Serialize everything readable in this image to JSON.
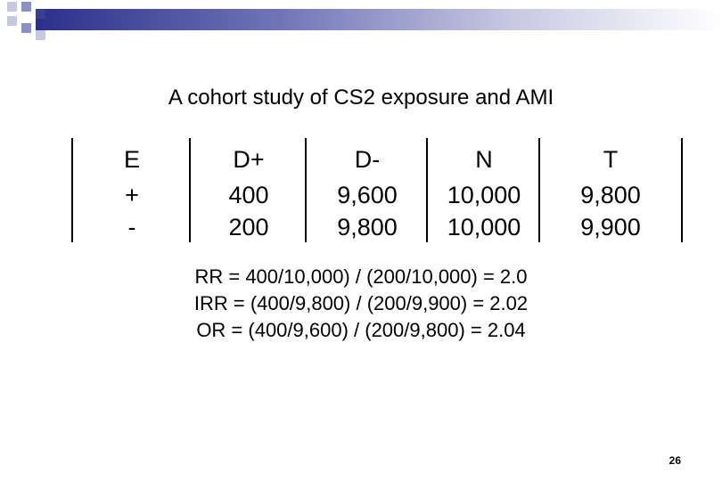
{
  "slide": {
    "title": "A cohort study of CS2 exposure and AMI",
    "page_number": "26"
  },
  "table": {
    "headers": [
      "E",
      "D+",
      "D-",
      "N",
      "T"
    ],
    "rows": [
      [
        "+",
        "400",
        "9,600",
        "10,000",
        "9,800"
      ],
      [
        "-",
        "200",
        "9,800",
        "10,000",
        "9,900"
      ]
    ]
  },
  "formulas": [
    "RR = 400/10,000) / (200/10,000) = 2.0",
    "IRR = (400/9,800) / (200/9,900) = 2.02",
    "OR = (400/9,600) / (200/9,800) = 2.04"
  ],
  "colors": {
    "bar_dark": "#2b2f8a",
    "bar_mid": "#8b8fc4",
    "bar_light": "#c6c8e2"
  }
}
